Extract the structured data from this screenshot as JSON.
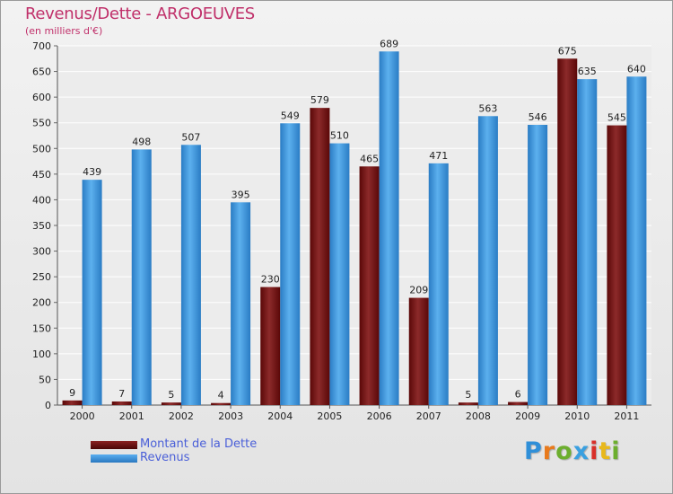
{
  "header": {
    "title": "Revenus/Dette - ARGOEUVES",
    "subtitle": "(en milliers d'€)"
  },
  "chart_data": {
    "type": "bar",
    "title": "Revenus/Dette - ARGOEUVES",
    "ylabel": "(en milliers d'€)",
    "xlabel": "",
    "ylim": [
      0,
      700
    ],
    "yticks": [
      0,
      50,
      100,
      150,
      200,
      250,
      300,
      350,
      400,
      450,
      500,
      550,
      600,
      650,
      700
    ],
    "grid": true,
    "categories": [
      "2000",
      "2001",
      "2002",
      "2003",
      "2004",
      "2005",
      "2006",
      "2007",
      "2008",
      "2009",
      "2010",
      "2011"
    ],
    "series": [
      {
        "name": "Montant de la Dette",
        "color": "#7a1a1a",
        "values": [
          9,
          7,
          5,
          4,
          230,
          579,
          465,
          209,
          5,
          6,
          675,
          545
        ]
      },
      {
        "name": "Revenus",
        "color": "#3f94d8",
        "values": [
          439,
          498,
          507,
          395,
          549,
          510,
          689,
          471,
          563,
          546,
          635,
          640
        ]
      }
    ]
  },
  "legend": {
    "items": [
      {
        "label": "Montant de la Dette",
        "color": "#6e0f0f"
      },
      {
        "label": "Revenus",
        "color": "#3f94d8"
      }
    ]
  },
  "brand": {
    "letters": [
      "P",
      "r",
      "o",
      "x",
      "i",
      "t",
      "i"
    ],
    "colors": [
      "#2f8fd8",
      "#e87a1c",
      "#6cae2e",
      "#3aa0e0",
      "#d8302a",
      "#e8b81c",
      "#6cae2e"
    ]
  }
}
